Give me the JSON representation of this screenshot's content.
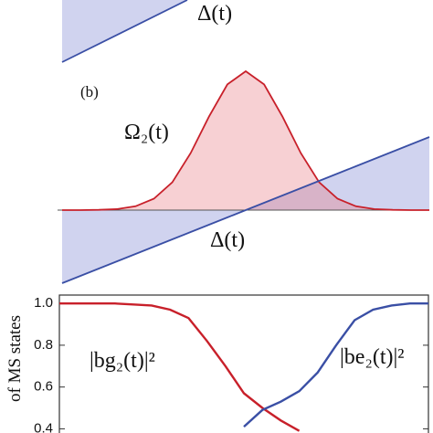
{
  "chart_data": [
    {
      "type": "line",
      "x": [
        0,
        1
      ],
      "series": [
        {
          "name": "Δ(t)",
          "color": "#3a4fa5",
          "values": [
            0,
            1
          ]
        }
      ],
      "xlim": [
        0,
        1
      ],
      "ylim": [
        0,
        1
      ]
    },
    {
      "type": "line",
      "panel_label": "(b)",
      "x": [
        -1,
        -0.9,
        -0.8,
        -0.7,
        -0.6,
        -0.5,
        -0.4,
        -0.3,
        -0.2,
        -0.1,
        0,
        0.1,
        0.2,
        0.3,
        0.4,
        0.5,
        0.6,
        0.7,
        0.8,
        0.9,
        1
      ],
      "series": [
        {
          "name": "Ω₂(t)",
          "color": "#c8202a",
          "values": [
            0,
            0,
            0.002,
            0.007,
            0.026,
            0.078,
            0.19,
            0.39,
            0.64,
            0.86,
            0.95,
            0.86,
            0.64,
            0.39,
            0.19,
            0.078,
            0.026,
            0.007,
            0.002,
            0,
            0
          ]
        },
        {
          "name": "Δ(t)",
          "color": "#3a4fa5",
          "values": [
            -0.5,
            -0.45,
            -0.4,
            -0.35,
            -0.3,
            -0.25,
            -0.2,
            -0.15,
            -0.1,
            -0.05,
            0,
            0.05,
            0.1,
            0.15,
            0.2,
            0.25,
            0.3,
            0.35,
            0.4,
            0.45,
            0.5
          ]
        }
      ],
      "xlim": [
        -1,
        1
      ],
      "ylim": [
        -0.5,
        1
      ]
    },
    {
      "type": "line",
      "ylabel": "of MS states",
      "x": [
        0,
        0.05,
        0.1,
        0.15,
        0.2,
        0.25,
        0.3,
        0.35,
        0.4,
        0.45,
        0.5,
        0.55,
        0.6,
        0.65,
        0.7,
        0.75,
        0.8,
        0.85,
        0.9,
        0.95,
        1
      ],
      "series": [
        {
          "name": "|bg₂(t)|²",
          "color": "#c8202a",
          "values": [
            1,
            1,
            1,
            1,
            0.995,
            0.99,
            0.97,
            0.93,
            0.82,
            0.7,
            0.57,
            0.5,
            0.44,
            0.39,
            null,
            null,
            null,
            null,
            null,
            null,
            null
          ]
        },
        {
          "name": "|be₂(t)|²",
          "color": "#3a4fa5",
          "values": [
            null,
            null,
            null,
            null,
            null,
            null,
            null,
            null,
            null,
            null,
            0.41,
            0.49,
            0.53,
            0.58,
            0.67,
            0.8,
            0.92,
            0.97,
            0.99,
            1,
            1
          ]
        }
      ],
      "xlim": [
        0,
        1
      ],
      "ylim": [
        0.38,
        1.04
      ],
      "yticks": [
        0.4,
        0.6,
        0.8,
        {
          "value": 1,
          "label": "1.0"
        }
      ]
    }
  ]
}
